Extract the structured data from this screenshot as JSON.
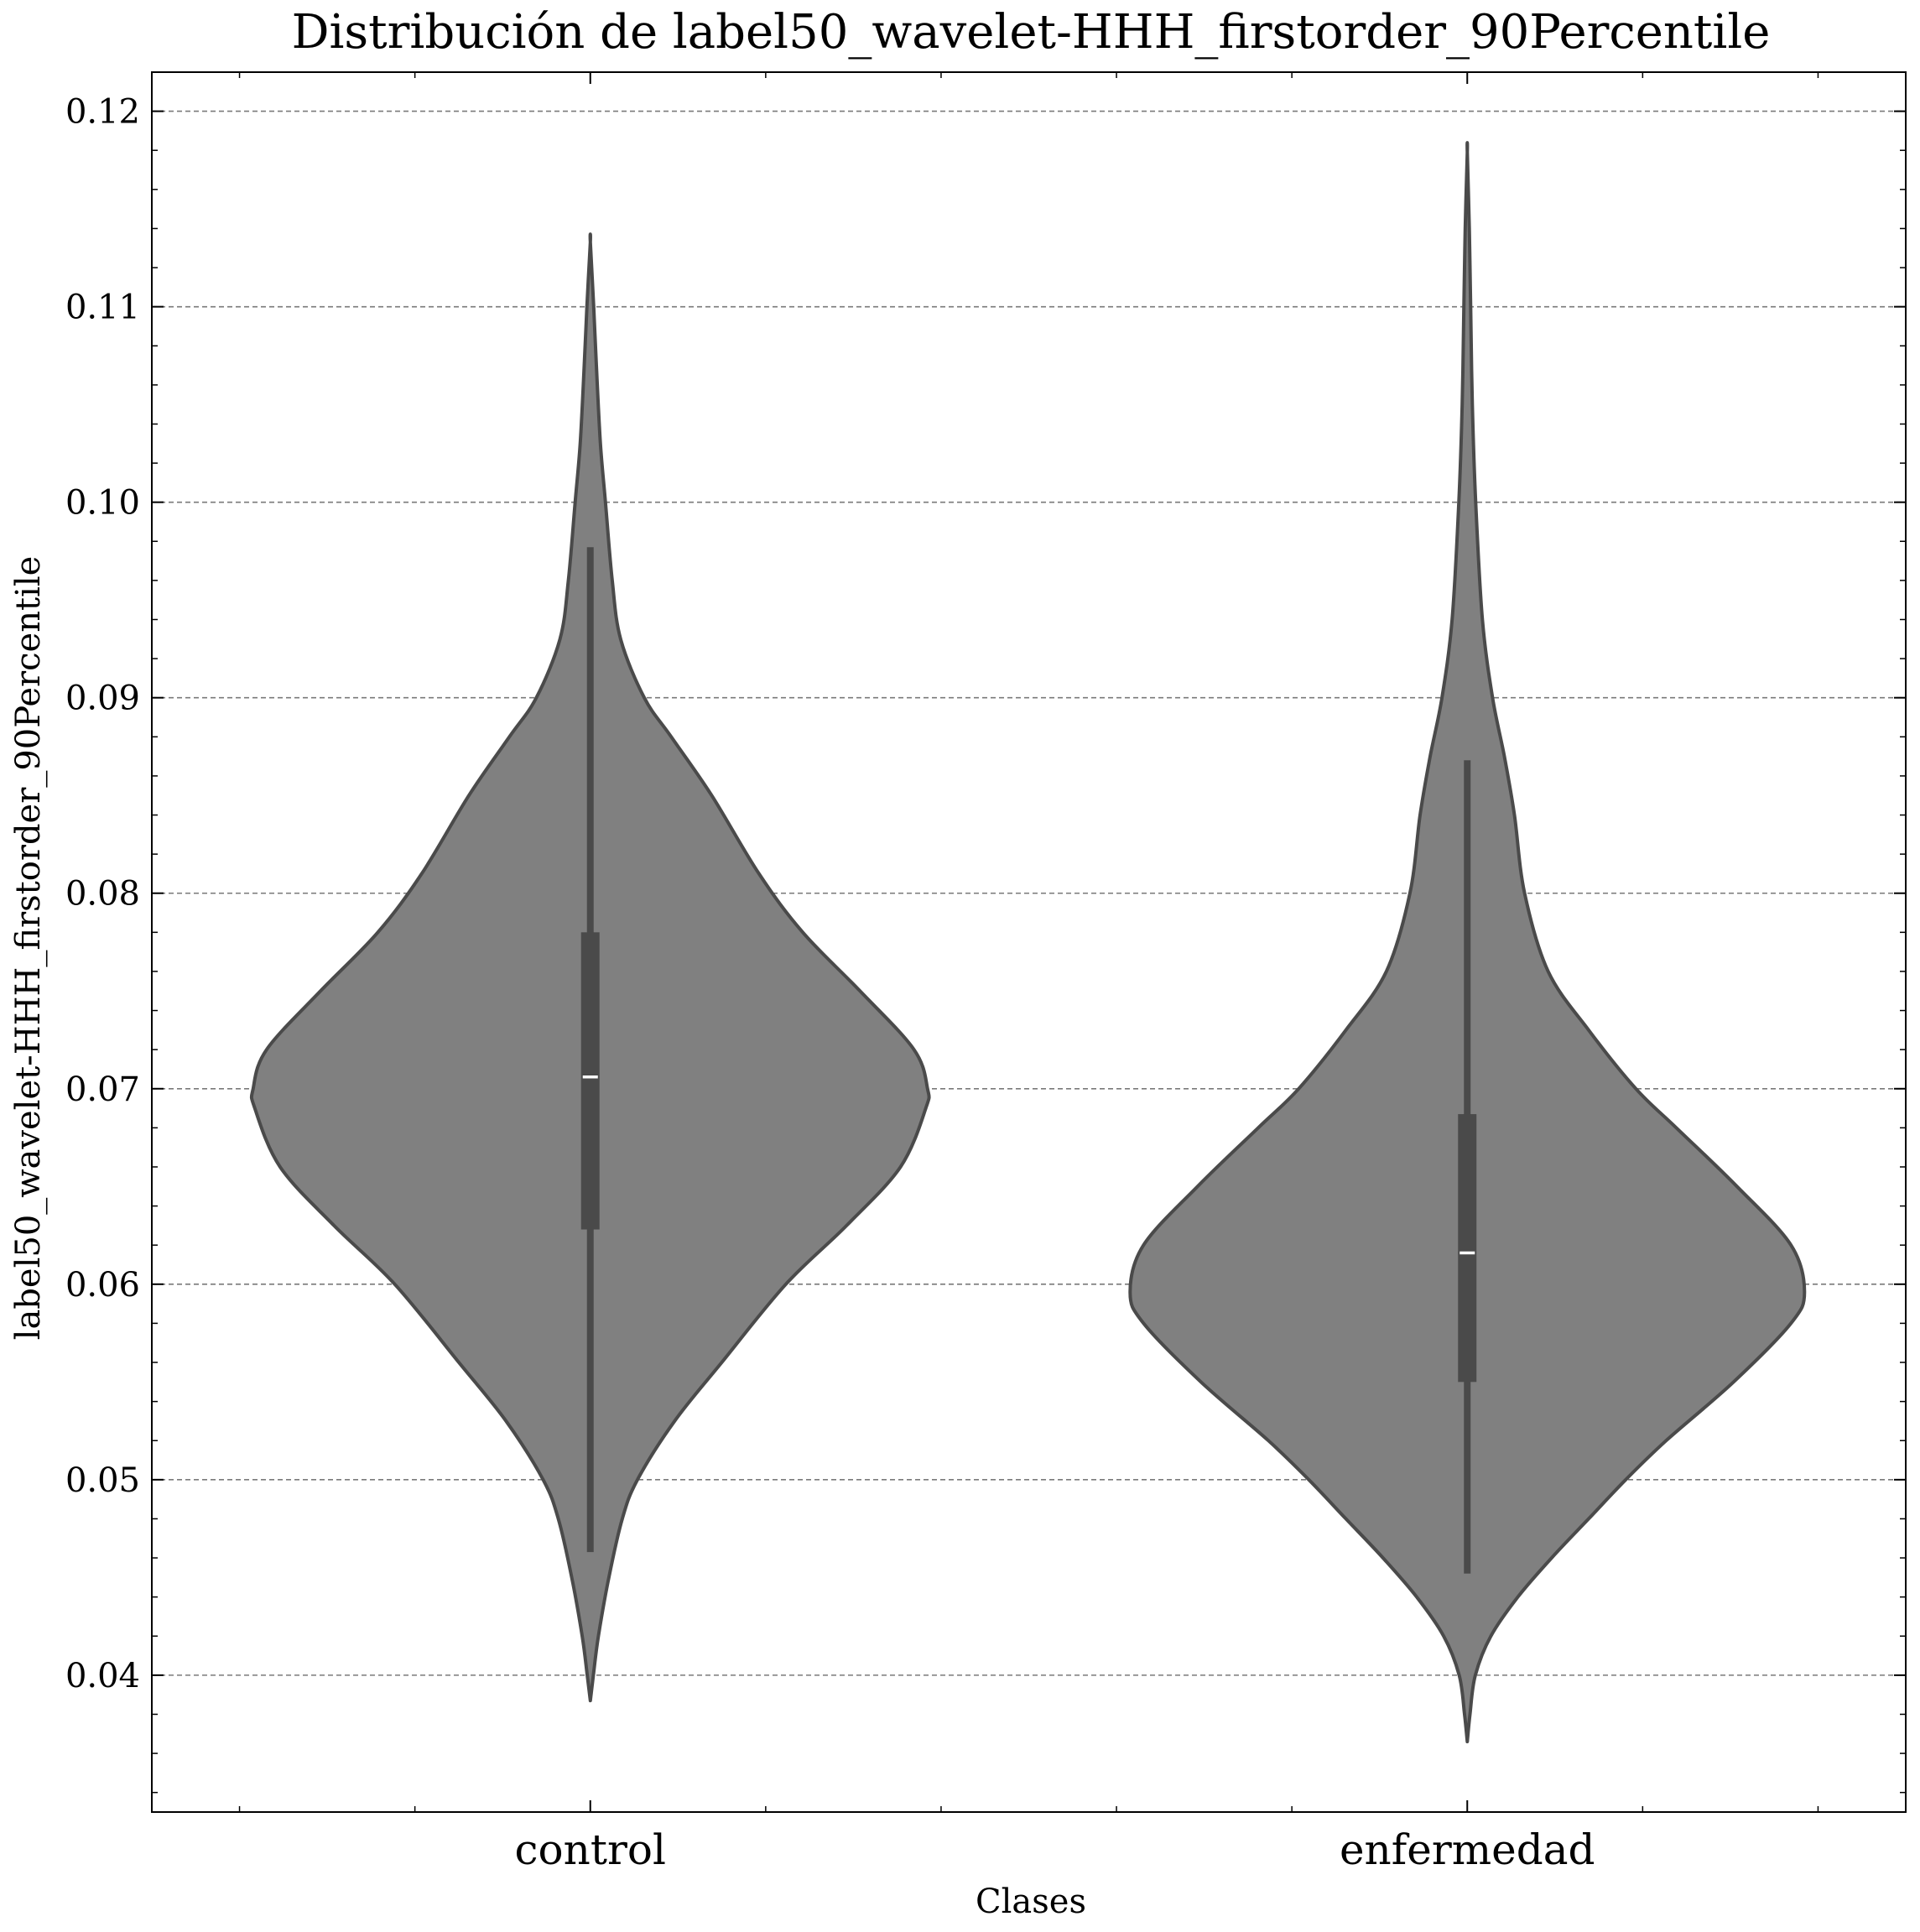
{
  "chart_data": {
    "type": "violin",
    "title": "Distribución de label50_wavelet-HHH_firstorder_90Percentile",
    "xlabel": "Clases",
    "ylabel": "label50_wavelet-HHH_firstorder_90Percentile",
    "categories": [
      "control",
      "enfermedad"
    ],
    "ylim": [
      0.033,
      0.122
    ],
    "yticks": [
      0.04,
      0.05,
      0.06,
      0.07,
      0.08,
      0.09,
      0.1,
      0.11,
      0.12
    ],
    "ytick_labels": [
      "0.04",
      "0.05",
      "0.06",
      "0.07",
      "0.08",
      "0.09",
      "0.10",
      "0.11",
      "0.12"
    ],
    "grid": "horizontal dashed",
    "violin_color": "#808080",
    "edge_color": "#4a4a4a",
    "box_color": "#4a4a4a",
    "median_color": "#ffffff",
    "series": [
      {
        "category": "control",
        "min": 0.0387,
        "max": 0.1133,
        "whisker_low": 0.0463,
        "whisker_high": 0.0977,
        "q1": 0.0628,
        "median": 0.0706,
        "q3": 0.078,
        "density": [
          [
            0.0387,
            0.0
          ],
          [
            0.04,
            0.009
          ],
          [
            0.042,
            0.024
          ],
          [
            0.045,
            0.055
          ],
          [
            0.048,
            0.095
          ],
          [
            0.05,
            0.14
          ],
          [
            0.053,
            0.25
          ],
          [
            0.056,
            0.39
          ],
          [
            0.06,
            0.58
          ],
          [
            0.063,
            0.76
          ],
          [
            0.066,
            0.92
          ],
          [
            0.069,
            0.995
          ],
          [
            0.07,
            1.0
          ],
          [
            0.072,
            0.96
          ],
          [
            0.075,
            0.8
          ],
          [
            0.078,
            0.63
          ],
          [
            0.081,
            0.5
          ],
          [
            0.085,
            0.36
          ],
          [
            0.088,
            0.24
          ],
          [
            0.09,
            0.16
          ],
          [
            0.093,
            0.09
          ],
          [
            0.096,
            0.065
          ],
          [
            0.1,
            0.045
          ],
          [
            0.103,
            0.03
          ],
          [
            0.107,
            0.018
          ],
          [
            0.11,
            0.01
          ],
          [
            0.1133,
            0.0
          ]
        ]
      },
      {
        "category": "enfermedad",
        "min": 0.0366,
        "max": 0.1179,
        "whisker_low": 0.0452,
        "whisker_high": 0.0868,
        "q1": 0.055,
        "median": 0.0616,
        "q3": 0.0687,
        "density": [
          [
            0.0366,
            0.0
          ],
          [
            0.038,
            0.008
          ],
          [
            0.04,
            0.024
          ],
          [
            0.042,
            0.07
          ],
          [
            0.044,
            0.15
          ],
          [
            0.046,
            0.25
          ],
          [
            0.048,
            0.36
          ],
          [
            0.05,
            0.47
          ],
          [
            0.052,
            0.59
          ],
          [
            0.055,
            0.79
          ],
          [
            0.058,
            0.96
          ],
          [
            0.0596,
            1.0
          ],
          [
            0.062,
            0.96
          ],
          [
            0.065,
            0.8
          ],
          [
            0.068,
            0.62
          ],
          [
            0.07,
            0.5
          ],
          [
            0.073,
            0.36
          ],
          [
            0.076,
            0.24
          ],
          [
            0.08,
            0.17
          ],
          [
            0.084,
            0.14
          ],
          [
            0.087,
            0.11
          ],
          [
            0.09,
            0.075
          ],
          [
            0.094,
            0.045
          ],
          [
            0.1,
            0.025
          ],
          [
            0.105,
            0.015
          ],
          [
            0.11,
            0.01
          ],
          [
            0.114,
            0.006
          ],
          [
            0.1179,
            0.0
          ]
        ]
      }
    ]
  }
}
